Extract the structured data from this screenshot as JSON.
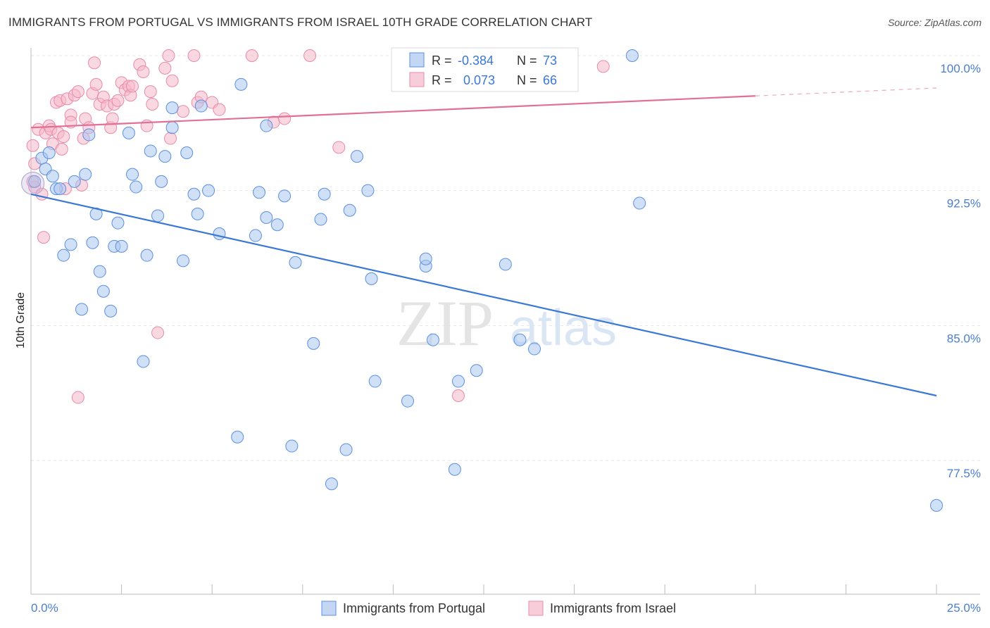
{
  "title": "IMMIGRANTS FROM PORTUGAL VS IMMIGRANTS FROM ISRAEL 10TH GRADE CORRELATION CHART",
  "source": "Source: ZipAtlas.com",
  "watermark": {
    "zip": "ZIP",
    "atlas": "atlas"
  },
  "colors": {
    "blue": "#5b8fe0",
    "blue_fill": "#aac6f0",
    "blue_line": "#3a78d6",
    "pink": "#e88aa8",
    "pink_fill": "#f5b8cb",
    "pink_line": "#e07098",
    "axis_text": "#4a7fd0"
  },
  "legend": {
    "r_label": "R =",
    "n_label": "N =",
    "rows": [
      {
        "r": "-0.384",
        "n": "73"
      },
      {
        "r": "0.073",
        "n": "66"
      }
    ]
  },
  "chart_data": {
    "type": "scatter",
    "ylabel": "10th Grade",
    "xlim": [
      0,
      25
    ],
    "ylim": [
      70.5,
      101
    ],
    "x_tick_labels": [
      "0.0%",
      "25.0%"
    ],
    "y_ticks": [
      100,
      92.5,
      85,
      77.5
    ],
    "y_tick_labels": [
      "100.0%",
      "92.5%",
      "85.0%",
      "77.5%"
    ],
    "series": [
      {
        "name": "Immigrants from Portugal",
        "trend": {
          "x": [
            0,
            25
          ],
          "y": [
            92.3,
            81.1
          ],
          "solid_to": 25
        },
        "points": [
          [
            0.1,
            93.0
          ],
          [
            0.3,
            94.3
          ],
          [
            0.4,
            93.7
          ],
          [
            0.5,
            94.6
          ],
          [
            0.6,
            93.3
          ],
          [
            0.7,
            92.6
          ],
          [
            0.8,
            92.6
          ],
          [
            0.9,
            88.9
          ],
          [
            1.1,
            89.5
          ],
          [
            1.2,
            93.0
          ],
          [
            1.4,
            85.9
          ],
          [
            1.5,
            93.4
          ],
          [
            1.6,
            95.6
          ],
          [
            1.7,
            89.6
          ],
          [
            1.8,
            91.2
          ],
          [
            1.9,
            88.0
          ],
          [
            2.0,
            86.9
          ],
          [
            2.2,
            85.8
          ],
          [
            2.3,
            89.4
          ],
          [
            2.4,
            90.7
          ],
          [
            2.5,
            89.4
          ],
          [
            2.7,
            95.7
          ],
          [
            2.8,
            93.4
          ],
          [
            2.9,
            92.7
          ],
          [
            3.1,
            83.0
          ],
          [
            3.2,
            88.9
          ],
          [
            3.3,
            94.7
          ],
          [
            3.5,
            91.1
          ],
          [
            3.6,
            93.0
          ],
          [
            3.7,
            94.4
          ],
          [
            3.9,
            96.0
          ],
          [
            3.9,
            97.1
          ],
          [
            4.2,
            88.6
          ],
          [
            4.3,
            94.6
          ],
          [
            4.5,
            92.3
          ],
          [
            4.6,
            91.2
          ],
          [
            4.7,
            97.2
          ],
          [
            4.9,
            92.5
          ],
          [
            5.2,
            90.1
          ],
          [
            5.7,
            78.8
          ],
          [
            5.8,
            98.4
          ],
          [
            6.2,
            90.0
          ],
          [
            6.3,
            92.4
          ],
          [
            6.5,
            96.1
          ],
          [
            6.5,
            91.0
          ],
          [
            6.8,
            90.6
          ],
          [
            7.0,
            92.2
          ],
          [
            7.2,
            78.3
          ],
          [
            7.3,
            88.5
          ],
          [
            7.8,
            84.0
          ],
          [
            8.0,
            90.9
          ],
          [
            8.1,
            92.3
          ],
          [
            8.3,
            76.2
          ],
          [
            8.7,
            78.1
          ],
          [
            8.8,
            91.4
          ],
          [
            9.0,
            94.4
          ],
          [
            9.3,
            92.5
          ],
          [
            9.4,
            87.6
          ],
          [
            9.5,
            81.9
          ],
          [
            10.4,
            80.8
          ],
          [
            10.9,
            88.3
          ],
          [
            10.9,
            88.7
          ],
          [
            11.1,
            84.2
          ],
          [
            11.7,
            77.0
          ],
          [
            11.8,
            81.9
          ],
          [
            12.3,
            82.5
          ],
          [
            13.1,
            88.4
          ],
          [
            13.5,
            84.2
          ],
          [
            13.9,
            83.7
          ],
          [
            13.7,
            100.0
          ],
          [
            16.6,
            100.0
          ],
          [
            16.8,
            91.8
          ],
          [
            25.0,
            75.0
          ]
        ]
      },
      {
        "name": "Immigrants from Israel",
        "trend": {
          "x": [
            0,
            25
          ],
          "y": [
            96.0,
            98.2
          ],
          "solid_to": 20
        },
        "points": [
          [
            0.05,
            95.0
          ],
          [
            0.1,
            92.7
          ],
          [
            0.1,
            94.0
          ],
          [
            0.2,
            95.9
          ],
          [
            0.3,
            92.3
          ],
          [
            0.35,
            89.9
          ],
          [
            0.4,
            95.7
          ],
          [
            0.5,
            96.1
          ],
          [
            0.55,
            95.9
          ],
          [
            0.6,
            95.1
          ],
          [
            0.7,
            97.4
          ],
          [
            0.75,
            95.7
          ],
          [
            0.8,
            97.5
          ],
          [
            0.85,
            94.8
          ],
          [
            0.9,
            95.5
          ],
          [
            0.95,
            92.6
          ],
          [
            1.0,
            97.6
          ],
          [
            1.1,
            96.7
          ],
          [
            1.1,
            96.3
          ],
          [
            1.2,
            97.8
          ],
          [
            1.3,
            98.0
          ],
          [
            1.3,
            81.0
          ],
          [
            1.4,
            92.8
          ],
          [
            1.45,
            95.4
          ],
          [
            1.5,
            96.5
          ],
          [
            1.6,
            96.0
          ],
          [
            1.7,
            97.9
          ],
          [
            1.75,
            99.6
          ],
          [
            1.8,
            98.4
          ],
          [
            1.9,
            97.3
          ],
          [
            2.0,
            97.7
          ],
          [
            2.1,
            97.2
          ],
          [
            2.2,
            96.0
          ],
          [
            2.25,
            96.5
          ],
          [
            2.3,
            97.3
          ],
          [
            2.4,
            97.5
          ],
          [
            2.5,
            98.5
          ],
          [
            2.6,
            98.1
          ],
          [
            2.7,
            98.3
          ],
          [
            2.75,
            97.8
          ],
          [
            2.8,
            98.3
          ],
          [
            3.0,
            99.5
          ],
          [
            3.1,
            99.1
          ],
          [
            3.2,
            96.1
          ],
          [
            3.3,
            98.0
          ],
          [
            3.35,
            97.3
          ],
          [
            3.5,
            84.6
          ],
          [
            3.7,
            99.3
          ],
          [
            3.8,
            100.0
          ],
          [
            3.85,
            95.4
          ],
          [
            3.9,
            98.6
          ],
          [
            4.2,
            96.9
          ],
          [
            4.5,
            100.0
          ],
          [
            4.6,
            97.4
          ],
          [
            4.7,
            97.7
          ],
          [
            5.0,
            97.4
          ],
          [
            5.2,
            97.0
          ],
          [
            6.1,
            100.0
          ],
          [
            6.7,
            96.3
          ],
          [
            7.0,
            96.5
          ],
          [
            7.7,
            100.0
          ],
          [
            8.5,
            94.9
          ],
          [
            10.3,
            100.0
          ],
          [
            11.8,
            81.1
          ],
          [
            15.8,
            99.4
          ],
          [
            0.05,
            93.0
          ]
        ]
      }
    ]
  }
}
